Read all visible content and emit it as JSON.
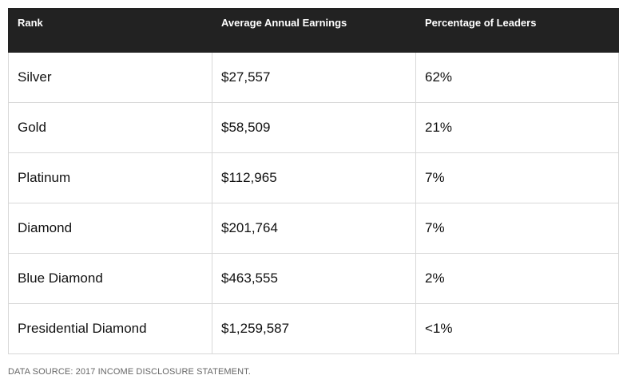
{
  "table": {
    "headers": [
      "Rank",
      "Average Annual Earnings",
      "Percentage of Leaders"
    ],
    "rows": [
      [
        "Silver",
        "$27,557",
        "62%"
      ],
      [
        "Gold",
        "$58,509",
        "21%"
      ],
      [
        "Platinum",
        "$112,965",
        "7%"
      ],
      [
        "Diamond",
        "$201,764",
        "7%"
      ],
      [
        "Blue Diamond",
        "$463,555",
        "2%"
      ],
      [
        "Presidential Diamond",
        "$1,259,587",
        "<1%"
      ]
    ]
  },
  "footer": {
    "source": "DATA SOURCE: 2017 INCOME DISCLOSURE STATEMENT."
  },
  "colors": {
    "header_background": "#222222",
    "header_text": "#ffffff",
    "border": "#d8d8d8"
  }
}
